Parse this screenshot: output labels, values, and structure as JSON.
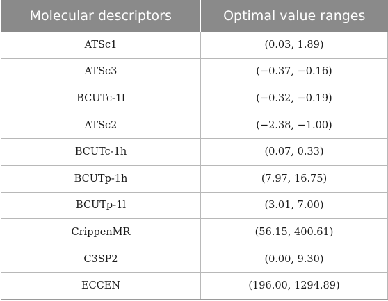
{
  "table": {
    "headers": [
      "Molecular descriptors",
      "Optimal value ranges"
    ],
    "rows": [
      [
        "ATSc1",
        "(0.03, 1.89)"
      ],
      [
        "ATSc3",
        "(−0.37, −0.16)"
      ],
      [
        "BCUTc-1l",
        "(−0.32, −0.19)"
      ],
      [
        "ATSc2",
        "(−2.38, −1.00)"
      ],
      [
        "BCUTc-1h",
        "(0.07, 0.33)"
      ],
      [
        "BCUTp-1h",
        "(7.97, 16.75)"
      ],
      [
        "BCUTp-1l",
        "(3.01, 7.00)"
      ],
      [
        "CrippenMR",
        "(56.15, 400.61)"
      ],
      [
        "C3SP2",
        "(0.00, 9.30)"
      ],
      [
        "ECCEN",
        "(196.00, 1294.89)"
      ]
    ]
  },
  "colors": {
    "header_bg": "#8a8a8a",
    "header_text": "#ffffff",
    "grid": "#b8b8b8"
  }
}
